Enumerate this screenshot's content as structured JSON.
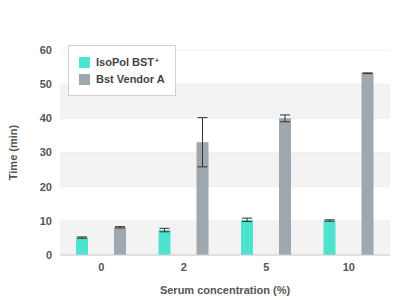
{
  "chart_data": {
    "type": "bar",
    "x_label": "Serum concentration (%)",
    "y_label": "Time (min)",
    "categories": [
      "0",
      "2",
      "5",
      "10"
    ],
    "series": [
      {
        "name": "IsoPol BST⁺",
        "color": "#4ee3cf",
        "values": [
          5.1,
          7.3,
          10.3,
          10.1
        ],
        "errors": [
          0.2,
          0.5,
          0.5,
          0.2
        ]
      },
      {
        "name": "Bst Vendor A",
        "color": "#9ea8ae",
        "values": [
          8.1,
          33,
          40,
          53.2
        ],
        "errors": [
          0.2,
          7.2,
          1.0,
          0.1
        ]
      }
    ],
    "ylim": [
      0,
      60
    ],
    "yticks": [
      0,
      10,
      20,
      30,
      40,
      50,
      60
    ],
    "grid": true,
    "legend": "upper left"
  }
}
